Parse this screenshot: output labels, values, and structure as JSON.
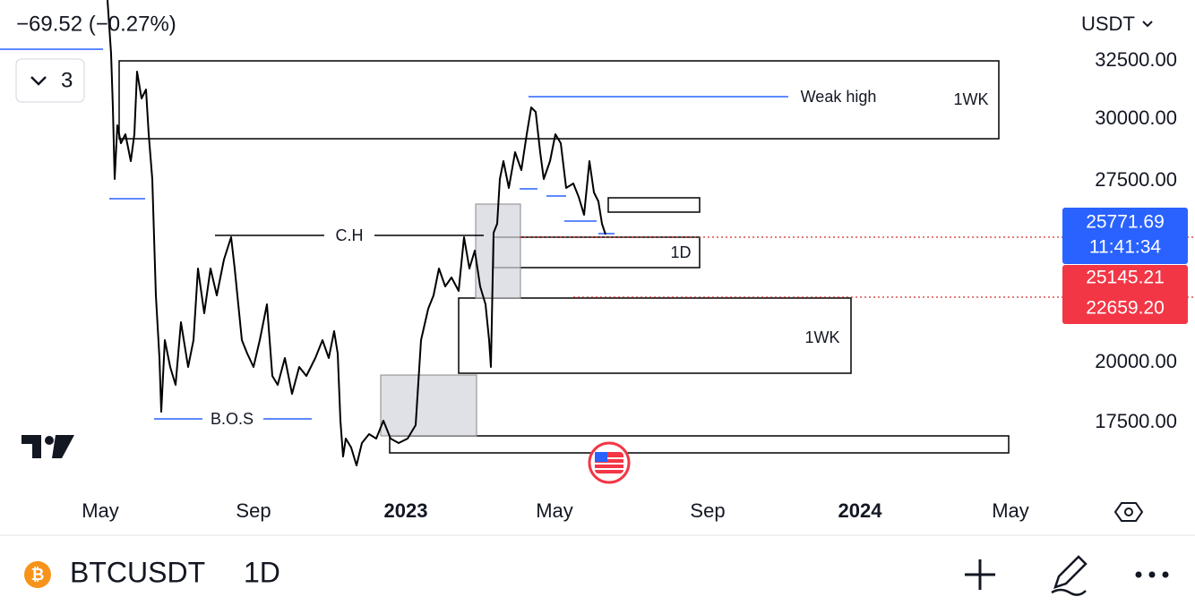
{
  "header": {
    "change": "−69.52 (−0.27%)",
    "layout_count": "3",
    "currency": "USDT"
  },
  "chart": {
    "yticks": [
      "32500.00",
      "30000.00",
      "27500.00",
      "20000.00",
      "17500.00"
    ],
    "xticks": [
      "May",
      "Sep",
      "2023",
      "May",
      "Sep",
      "2024",
      "May"
    ],
    "annotations": {
      "weak_high": "Weak high",
      "zone_top": "1WK",
      "ch": "C.H",
      "zone_1d": "1D",
      "zone_mid": "1WK",
      "bos": "B.O.S"
    },
    "price_tags": {
      "last": "25771.69",
      "countdown": "11:41:34",
      "level_1": "25145.21",
      "level_2": "22659.20"
    }
  },
  "toolbar": {
    "symbol": "BTCUSDT",
    "interval": "1D"
  }
}
